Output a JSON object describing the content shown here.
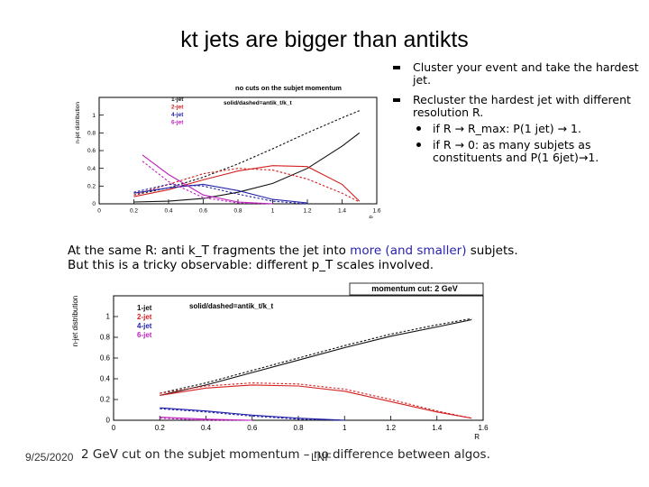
{
  "title": "kt jets are bigger than antikts",
  "bullets": {
    "b1": "Cluster your event and take the hardest jet.",
    "b2": "Recluster the hardest jet with different resolution R.",
    "s1": "if R → R_max: P(1 jet) → 1.",
    "s2": "if R → 0: as many subjets as constituents and P(1 6jet)→1."
  },
  "caption": {
    "line1_a": "At the same R: anti k_T fragments the jet into ",
    "line1_b": "more (and smaller)",
    "line1_c": " subjets.",
    "line2": "But this is a tricky observable: different p_T scales involved."
  },
  "footer": {
    "text": "2 GeV cut on the subjet momentum – no difference between algos.",
    "date": "9/25/2020",
    "org": "LNF"
  },
  "colors": {
    "one": "#111111",
    "two": "#d42020",
    "four": "#2222aa",
    "six": "#c020c0"
  },
  "chart_data": [
    {
      "type": "line",
      "title": "no cuts on the subjet momentum",
      "annotation": "solid/dashed=antik_t/k_t",
      "ylabel": "n-jet distribution",
      "xlabel": "R",
      "xlim": [
        0,
        1.6
      ],
      "ylim": [
        0,
        1.2
      ],
      "xticks": [
        "0",
        "0.2",
        "0.4",
        "0.6",
        "0.8",
        "1",
        "1.2",
        "1.4",
        "1.6"
      ],
      "yticks": [
        "0",
        "0.2",
        "0.4",
        "0.6",
        "0.8",
        "1"
      ],
      "legend": [
        "1-jet",
        "2-jet",
        "4-jet",
        "6-jet"
      ],
      "series": [
        {
          "name": "1-jet",
          "style": "solid",
          "color": "#111111",
          "x": [
            0.2,
            0.4,
            0.6,
            0.8,
            1.0,
            1.2,
            1.4,
            1.5
          ],
          "y": [
            0.02,
            0.03,
            0.06,
            0.13,
            0.23,
            0.4,
            0.65,
            0.8
          ]
        },
        {
          "name": "1-jet",
          "style": "dashed",
          "color": "#111111",
          "x": [
            0.2,
            0.4,
            0.6,
            0.8,
            1.0,
            1.2,
            1.4,
            1.5
          ],
          "y": [
            0.1,
            0.18,
            0.3,
            0.45,
            0.62,
            0.8,
            0.97,
            1.05
          ]
        },
        {
          "name": "2-jet",
          "style": "solid",
          "color": "#d42020",
          "x": [
            0.2,
            0.4,
            0.6,
            0.8,
            1.0,
            1.2,
            1.4,
            1.5
          ],
          "y": [
            0.08,
            0.16,
            0.27,
            0.37,
            0.43,
            0.42,
            0.22,
            0.03
          ]
        },
        {
          "name": "2-jet",
          "style": "dashed",
          "color": "#d42020",
          "x": [
            0.2,
            0.4,
            0.6,
            0.8,
            1.0,
            1.2,
            1.4,
            1.5
          ],
          "y": [
            0.1,
            0.22,
            0.34,
            0.4,
            0.38,
            0.28,
            0.12,
            0.02
          ]
        },
        {
          "name": "4-jet",
          "style": "solid",
          "color": "#2222aa",
          "x": [
            0.2,
            0.4,
            0.6,
            0.8,
            1.0,
            1.2
          ],
          "y": [
            0.12,
            0.18,
            0.22,
            0.15,
            0.05,
            0.01
          ]
        },
        {
          "name": "4-jet",
          "style": "dashed",
          "color": "#2222aa",
          "x": [
            0.2,
            0.4,
            0.6,
            0.8,
            1.0,
            1.2
          ],
          "y": [
            0.13,
            0.22,
            0.2,
            0.11,
            0.03,
            0.0
          ]
        },
        {
          "name": "6-jet",
          "style": "solid",
          "color": "#c020c0",
          "x": [
            0.25,
            0.4,
            0.6,
            0.8,
            1.0
          ],
          "y": [
            0.55,
            0.33,
            0.1,
            0.02,
            0.0
          ]
        },
        {
          "name": "6-jet",
          "style": "dashed",
          "color": "#c020c0",
          "x": [
            0.25,
            0.4,
            0.6,
            0.8,
            1.0
          ],
          "y": [
            0.48,
            0.25,
            0.07,
            0.01,
            0.0
          ]
        }
      ]
    },
    {
      "type": "line",
      "title": "momentum cut: 2 GeV",
      "annotation": "solid/dashed=antik_t/k_t",
      "ylabel": "n-jet distribution",
      "xlabel": "R",
      "xlim": [
        0,
        1.6
      ],
      "ylim": [
        0,
        1.2
      ],
      "xticks": [
        "0",
        "0.2",
        "0.4",
        "0.6",
        "0.8",
        "1",
        "1.2",
        "1.4",
        "1.6"
      ],
      "yticks": [
        "0",
        "0.2",
        "0.4",
        "0.6",
        "0.8",
        "1"
      ],
      "legend": [
        "1-jet",
        "2-jet",
        "4-jet",
        "6-jet"
      ],
      "series": [
        {
          "name": "1-jet",
          "style": "solid",
          "color": "#111111",
          "x": [
            0.2,
            0.4,
            0.6,
            0.8,
            1.0,
            1.2,
            1.4,
            1.55
          ],
          "y": [
            0.24,
            0.34,
            0.46,
            0.58,
            0.7,
            0.81,
            0.9,
            0.97
          ]
        },
        {
          "name": "1-jet",
          "style": "dashed",
          "color": "#111111",
          "x": [
            0.2,
            0.4,
            0.6,
            0.8,
            1.0,
            1.2,
            1.4,
            1.55
          ],
          "y": [
            0.26,
            0.36,
            0.48,
            0.6,
            0.72,
            0.83,
            0.92,
            0.98
          ]
        },
        {
          "name": "2-jet",
          "style": "solid",
          "color": "#d42020",
          "x": [
            0.2,
            0.4,
            0.6,
            0.8,
            1.0,
            1.2,
            1.4,
            1.55
          ],
          "y": [
            0.24,
            0.31,
            0.34,
            0.33,
            0.28,
            0.18,
            0.08,
            0.02
          ]
        },
        {
          "name": "2-jet",
          "style": "dashed",
          "color": "#d42020",
          "x": [
            0.2,
            0.4,
            0.6,
            0.8,
            1.0,
            1.2,
            1.4,
            1.55
          ],
          "y": [
            0.26,
            0.33,
            0.36,
            0.35,
            0.3,
            0.2,
            0.09,
            0.02
          ]
        },
        {
          "name": "4-jet",
          "style": "solid",
          "color": "#2222aa",
          "x": [
            0.2,
            0.4,
            0.6,
            0.8,
            1.0
          ],
          "y": [
            0.12,
            0.09,
            0.05,
            0.02,
            0.0
          ]
        },
        {
          "name": "4-jet",
          "style": "dashed",
          "color": "#2222aa",
          "x": [
            0.2,
            0.4,
            0.6,
            0.8,
            1.0
          ],
          "y": [
            0.11,
            0.08,
            0.04,
            0.01,
            0.0
          ]
        },
        {
          "name": "6-jet",
          "style": "solid",
          "color": "#c020c0",
          "x": [
            0.2,
            0.4,
            0.6
          ],
          "y": [
            0.03,
            0.01,
            0.0
          ]
        },
        {
          "name": "6-jet",
          "style": "dashed",
          "color": "#c020c0",
          "x": [
            0.2,
            0.4,
            0.6
          ],
          "y": [
            0.02,
            0.0,
            0.0
          ]
        }
      ]
    }
  ]
}
